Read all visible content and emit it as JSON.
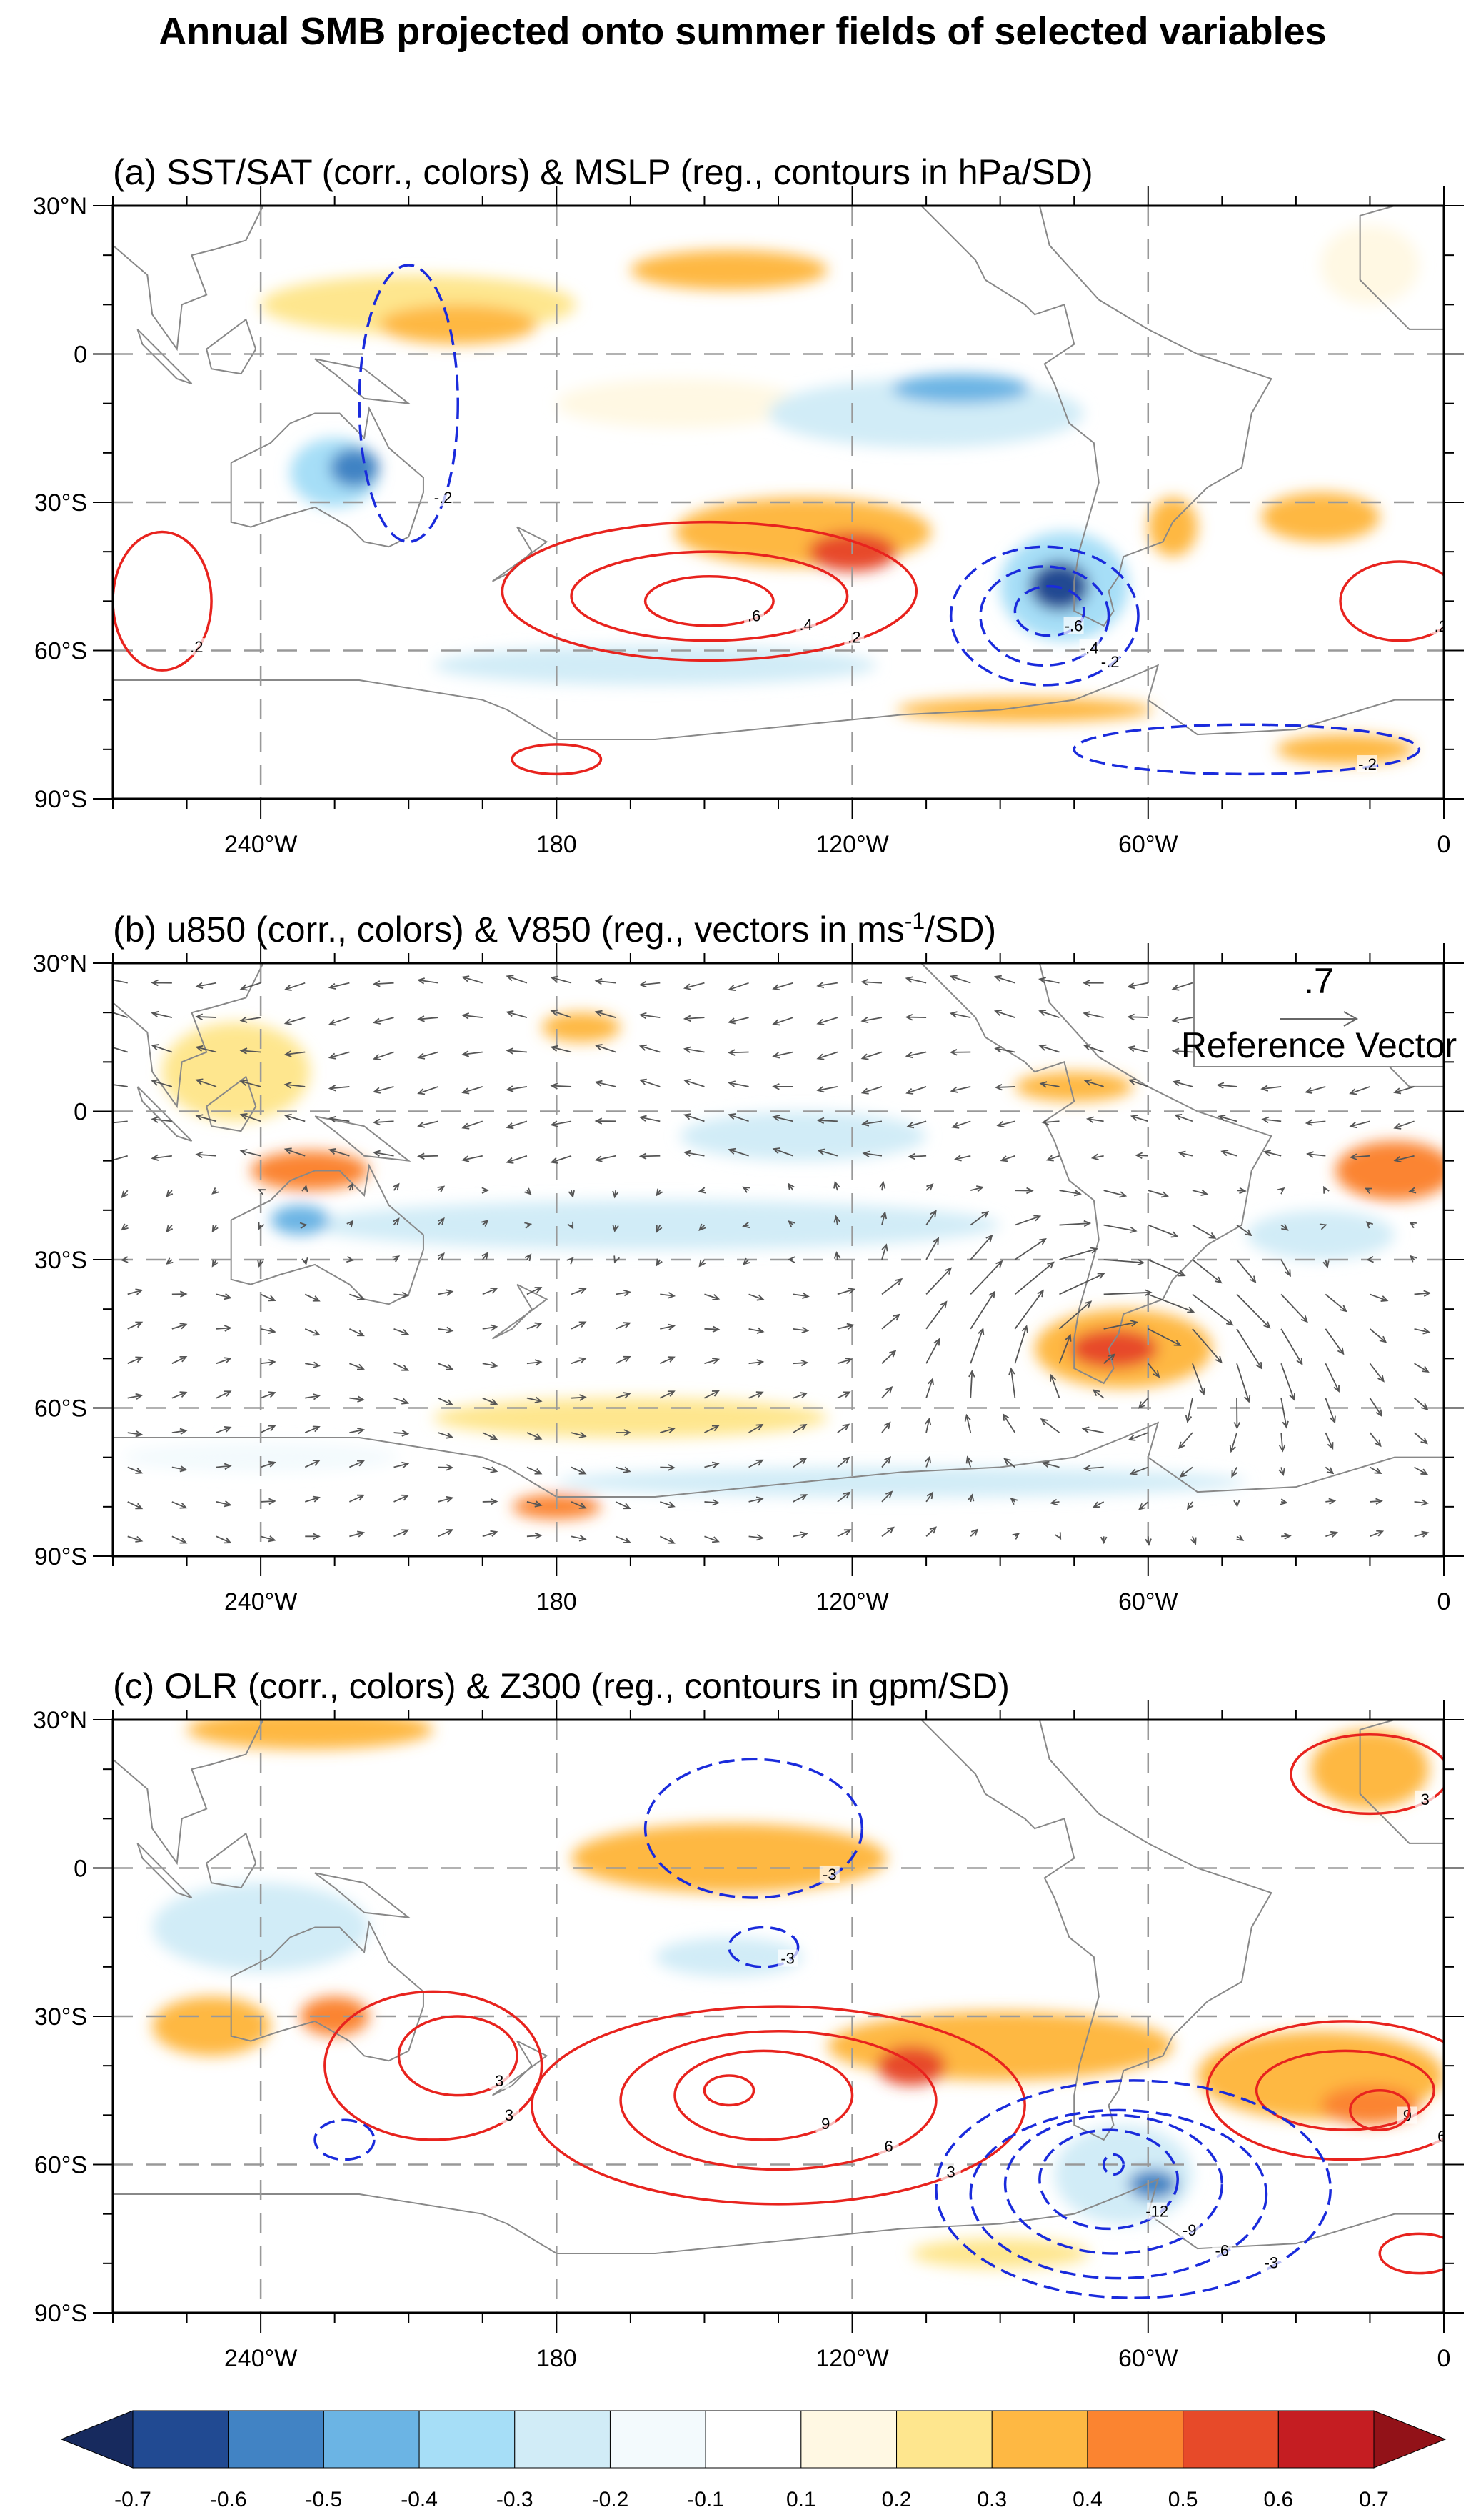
{
  "title": "Annual SMB projected onto summer fields of selected variables",
  "chart_data": {
    "type": "heatmap",
    "projection": "lat-lon",
    "lon_range_east": [
      90,
      360
    ],
    "lat_range": [
      -90,
      30
    ],
    "lat_ticks": [
      {
        "v": 30,
        "label": "30°N"
      },
      {
        "v": 0,
        "label": "0"
      },
      {
        "v": -30,
        "label": "30°S"
      },
      {
        "v": -60,
        "label": "60°S"
      },
      {
        "v": -90,
        "label": "90°S"
      }
    ],
    "lon_ticks": [
      {
        "v": 120,
        "label": "240°W"
      },
      {
        "v": 180,
        "label": "180"
      },
      {
        "v": 240,
        "label": "120°W"
      },
      {
        "v": 300,
        "label": "60°W"
      },
      {
        "v": 360,
        "label": "0"
      }
    ],
    "colorbar": {
      "levels": [
        "-0.7",
        "-0.6",
        "-0.5",
        "-0.4",
        "-0.3",
        "-0.2",
        "-0.1",
        "0.1",
        "0.2",
        "0.3",
        "0.4",
        "0.5",
        "0.6",
        "0.7"
      ],
      "colors": [
        "#172a5e",
        "#214a92",
        "#4183c4",
        "#6bb4e4",
        "#a6def7",
        "#d1ecf7",
        "#f3fafd",
        "#ffffff",
        "#fff8e3",
        "#fee68e",
        "#feb843",
        "#fb8430",
        "#e74a29",
        "#c51d22",
        "#921218"
      ]
    },
    "panels": [
      {
        "title": "(a) SST/SAT (corr., colors) & MSLP (reg., contours in hPa/SD)",
        "overlay": "contours",
        "fields": [
          {
            "lon": 152,
            "lat": 10,
            "rx": 32,
            "ry": 6,
            "v": 0.25
          },
          {
            "lon": 160,
            "lat": 6,
            "rx": 16,
            "ry": 4,
            "v": 0.35
          },
          {
            "lon": 215,
            "lat": 17,
            "rx": 20,
            "ry": 4,
            "v": 0.3
          },
          {
            "lon": 205,
            "lat": -10,
            "rx": 25,
            "ry": 5,
            "v": 0.15
          },
          {
            "lon": 135,
            "lat": -24,
            "rx": 9,
            "ry": 7,
            "v": -0.4
          },
          {
            "lon": 139,
            "lat": -23,
            "rx": 5,
            "ry": 4,
            "v": -0.6
          },
          {
            "lon": 255,
            "lat": -12,
            "rx": 32,
            "ry": 7,
            "v": -0.25
          },
          {
            "lon": 262,
            "lat": -7,
            "rx": 14,
            "ry": 3,
            "v": -0.45
          },
          {
            "lon": 230,
            "lat": -36,
            "rx": 26,
            "ry": 7,
            "v": 0.3
          },
          {
            "lon": 240,
            "lat": -40,
            "rx": 9,
            "ry": 4,
            "v": 0.55
          },
          {
            "lon": 283,
            "lat": -47,
            "rx": 13,
            "ry": 11,
            "v": -0.35
          },
          {
            "lon": 282,
            "lat": -47,
            "rx": 6,
            "ry": 5,
            "v": -0.7
          },
          {
            "lon": 200,
            "lat": -63,
            "rx": 45,
            "ry": 4,
            "v": -0.25
          },
          {
            "lon": 275,
            "lat": -72,
            "rx": 26,
            "ry": 2.5,
            "v": 0.35
          },
          {
            "lon": 335,
            "lat": -33,
            "rx": 12,
            "ry": 5,
            "v": 0.35
          },
          {
            "lon": 305,
            "lat": -35,
            "rx": 5,
            "ry": 6,
            "v": 0.35
          },
          {
            "lon": 340,
            "lat": -80,
            "rx": 14,
            "ry": 3,
            "v": 0.3
          },
          {
            "lon": 345,
            "lat": 18,
            "rx": 10,
            "ry": 8,
            "v": 0.15
          }
        ],
        "contours": [
          {
            "lon": 211,
            "lat": -48,
            "rx": 42,
            "ry": 14,
            "level": 0.2,
            "label": ".2"
          },
          {
            "lon": 211,
            "lat": -49,
            "rx": 28,
            "ry": 9,
            "level": 0.4,
            "label": ".4"
          },
          {
            "lon": 211,
            "lat": -50,
            "rx": 13,
            "ry": 5,
            "level": 0.6,
            "label": ".6"
          },
          {
            "lon": 100,
            "lat": -50,
            "rx": 10,
            "ry": 14,
            "level": 0.2,
            "label": ".2"
          },
          {
            "lon": 180,
            "lat": -82,
            "rx": 9,
            "ry": 3,
            "level": 0.2,
            "label": ""
          },
          {
            "lon": 279,
            "lat": -53,
            "rx": 19,
            "ry": 14,
            "level": -0.2,
            "label": "-.2"
          },
          {
            "lon": 279,
            "lat": -53,
            "rx": 13,
            "ry": 10,
            "level": -0.4,
            "label": "-.4"
          },
          {
            "lon": 280,
            "lat": -52,
            "rx": 7,
            "ry": 5,
            "level": -0.6,
            "label": "-.6"
          },
          {
            "lon": 351,
            "lat": -50,
            "rx": 12,
            "ry": 8,
            "level": 0.2,
            "label": ".2"
          },
          {
            "lon": 320,
            "lat": -80,
            "rx": 35,
            "ry": 5,
            "level": -0.2,
            "label": "-.2"
          },
          {
            "lon": 150,
            "lat": -10,
            "rx": 10,
            "ry": 28,
            "level": -0.2,
            "label": "-.2"
          }
        ]
      },
      {
        "title": "(b) u850 (corr., colors) & V850 (reg., vectors in ms",
        "title_sup": "-1",
        "title_end": "/SD)",
        "overlay": "vectors",
        "reference_vector": {
          "value": ".7",
          "label": "Reference Vector",
          "magnitude": 0.7
        },
        "fields": [
          {
            "lon": 185,
            "lat": 17,
            "rx": 8,
            "ry": 3,
            "v": 0.3
          },
          {
            "lon": 115,
            "lat": 8,
            "rx": 15,
            "ry": 10,
            "v": 0.25
          },
          {
            "lon": 130,
            "lat": -12,
            "rx": 12,
            "ry": 4,
            "v": 0.45
          },
          {
            "lon": 200,
            "lat": -23,
            "rx": 70,
            "ry": 5,
            "v": -0.25
          },
          {
            "lon": 128,
            "lat": -22,
            "rx": 6,
            "ry": 3,
            "v": -0.5
          },
          {
            "lon": 230,
            "lat": -5,
            "rx": 25,
            "ry": 5,
            "v": -0.25
          },
          {
            "lon": 285,
            "lat": 5,
            "rx": 12,
            "ry": 3,
            "v": 0.35
          },
          {
            "lon": 350,
            "lat": -12,
            "rx": 12,
            "ry": 6,
            "v": 0.4
          },
          {
            "lon": 335,
            "lat": -25,
            "rx": 15,
            "ry": 5,
            "v": -0.3
          },
          {
            "lon": 295,
            "lat": -48,
            "rx": 18,
            "ry": 8,
            "v": 0.35
          },
          {
            "lon": 293,
            "lat": -48,
            "rx": 9,
            "ry": 4,
            "v": 0.55
          },
          {
            "lon": 195,
            "lat": -62,
            "rx": 40,
            "ry": 4,
            "v": 0.25
          },
          {
            "lon": 250,
            "lat": -75,
            "rx": 70,
            "ry": 3,
            "v": -0.25
          },
          {
            "lon": 180,
            "lat": -80,
            "rx": 9,
            "ry": 2.5,
            "v": 0.45
          },
          {
            "lon": 120,
            "lat": -70,
            "rx": 28,
            "ry": 3,
            "v": -0.2
          }
        ]
      },
      {
        "title": "(c) OLR (corr., colors) & Z300 (reg., contours in gpm/SD)",
        "overlay": "contours",
        "fields": [
          {
            "lon": 130,
            "lat": 28,
            "rx": 25,
            "ry": 4,
            "v": 0.3
          },
          {
            "lon": 215,
            "lat": 2,
            "rx": 32,
            "ry": 7,
            "v": 0.3
          },
          {
            "lon": 215,
            "lat": -18,
            "rx": 15,
            "ry": 4,
            "v": -0.25
          },
          {
            "lon": 120,
            "lat": -12,
            "rx": 22,
            "ry": 9,
            "v": -0.25
          },
          {
            "lon": 110,
            "lat": -32,
            "rx": 12,
            "ry": 6,
            "v": 0.3
          },
          {
            "lon": 135,
            "lat": -30,
            "rx": 7,
            "ry": 4,
            "v": 0.45
          },
          {
            "lon": 270,
            "lat": -36,
            "rx": 35,
            "ry": 7,
            "v": 0.3
          },
          {
            "lon": 252,
            "lat": -40,
            "rx": 7,
            "ry": 4,
            "v": 0.5
          },
          {
            "lon": 335,
            "lat": -42,
            "rx": 25,
            "ry": 9,
            "v": 0.3
          },
          {
            "lon": 345,
            "lat": -48,
            "rx": 10,
            "ry": 4,
            "v": 0.45
          },
          {
            "lon": 345,
            "lat": 20,
            "rx": 12,
            "ry": 8,
            "v": 0.3
          },
          {
            "lon": 295,
            "lat": -62,
            "rx": 14,
            "ry": 10,
            "v": -0.25
          },
          {
            "lon": 301,
            "lat": -64,
            "rx": 5,
            "ry": 3,
            "v": -0.6
          },
          {
            "lon": 270,
            "lat": -78,
            "rx": 18,
            "ry": 3,
            "v": 0.25
          }
        ],
        "contours": [
          {
            "lon": 155,
            "lat": -40,
            "rx": 22,
            "ry": 15,
            "level": 3,
            "label": "3"
          },
          {
            "lon": 160,
            "lat": -38,
            "rx": 12,
            "ry": 8,
            "level": 3,
            "label": "3"
          },
          {
            "lon": 225,
            "lat": -48,
            "rx": 50,
            "ry": 20,
            "level": 3,
            "label": "3"
          },
          {
            "lon": 225,
            "lat": -47,
            "rx": 32,
            "ry": 14,
            "level": 6,
            "label": "6"
          },
          {
            "lon": 222,
            "lat": -46,
            "rx": 18,
            "ry": 9,
            "level": 9,
            "label": "9"
          },
          {
            "lon": 215,
            "lat": -45,
            "rx": 5,
            "ry": 3,
            "level": 9,
            "label": ""
          },
          {
            "lon": 340,
            "lat": -45,
            "rx": 28,
            "ry": 14,
            "level": 6,
            "label": "6"
          },
          {
            "lon": 340,
            "lat": -45,
            "rx": 18,
            "ry": 8,
            "level": 9,
            "label": "9"
          },
          {
            "lon": 347,
            "lat": -49,
            "rx": 6,
            "ry": 4,
            "level": 9,
            "label": ""
          },
          {
            "lon": 345,
            "lat": 19,
            "rx": 16,
            "ry": 8,
            "level": 3,
            "label": "3"
          },
          {
            "lon": 297,
            "lat": -65,
            "rx": 40,
            "ry": 22,
            "level": -3,
            "label": "-3"
          },
          {
            "lon": 294,
            "lat": -66,
            "rx": 30,
            "ry": 17,
            "level": -6,
            "label": "-6"
          },
          {
            "lon": 293,
            "lat": -64,
            "rx": 22,
            "ry": 14,
            "level": -9,
            "label": "-9"
          },
          {
            "lon": 292,
            "lat": -63,
            "rx": 14,
            "ry": 10,
            "level": -12,
            "label": "-12"
          },
          {
            "lon": 293,
            "lat": -60,
            "rx": 2,
            "ry": 2,
            "level": -15,
            "label": ""
          },
          {
            "lon": 222,
            "lat": -16,
            "rx": 7,
            "ry": 4,
            "level": -3,
            "label": "-3"
          },
          {
            "lon": 220,
            "lat": 8,
            "rx": 22,
            "ry": 14,
            "level": -3,
            "label": "-3"
          },
          {
            "lon": 137,
            "lat": -55,
            "rx": 6,
            "ry": 4,
            "level": -3,
            "label": ""
          },
          {
            "lon": 355,
            "lat": -78,
            "rx": 8,
            "ry": 4,
            "level": 3,
            "label": ""
          }
        ]
      }
    ]
  }
}
